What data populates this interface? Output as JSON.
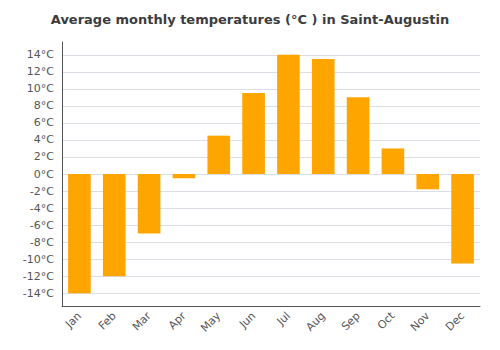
{
  "chart_data": {
    "type": "bar",
    "title": "Average monthly temperatures (°C ) in Saint-Augustin",
    "categories": [
      "Jan",
      "Feb",
      "Mar",
      "Apr",
      "May",
      "Jun",
      "Jul",
      "Aug",
      "Sep",
      "Oct",
      "Nov",
      "Dec"
    ],
    "values": [
      -14,
      -12,
      -7,
      -0.5,
      4.5,
      9.5,
      14,
      13.5,
      9,
      3,
      -1.8,
      -10.5
    ],
    "color": "#FFA500",
    "ylim": [
      -15.5,
      15.5
    ],
    "yticks": [
      {
        "value": -14,
        "label": "-14°C"
      },
      {
        "value": -12,
        "label": "-12°C"
      },
      {
        "value": -10,
        "label": "-10°C"
      },
      {
        "value": -8,
        "label": "-8°C"
      },
      {
        "value": -6,
        "label": "-6°C"
      },
      {
        "value": -4,
        "label": "-4°C"
      },
      {
        "value": -2,
        "label": "-2°C"
      },
      {
        "value": 0,
        "label": "0°C"
      },
      {
        "value": 2,
        "label": "2°C"
      },
      {
        "value": 4,
        "label": "4°C"
      },
      {
        "value": 6,
        "label": "6°C"
      },
      {
        "value": 8,
        "label": "8°C"
      },
      {
        "value": 10,
        "label": "10°C"
      },
      {
        "value": 12,
        "label": "12°C"
      },
      {
        "value": 14,
        "label": "14°C"
      }
    ],
    "grid": true
  }
}
